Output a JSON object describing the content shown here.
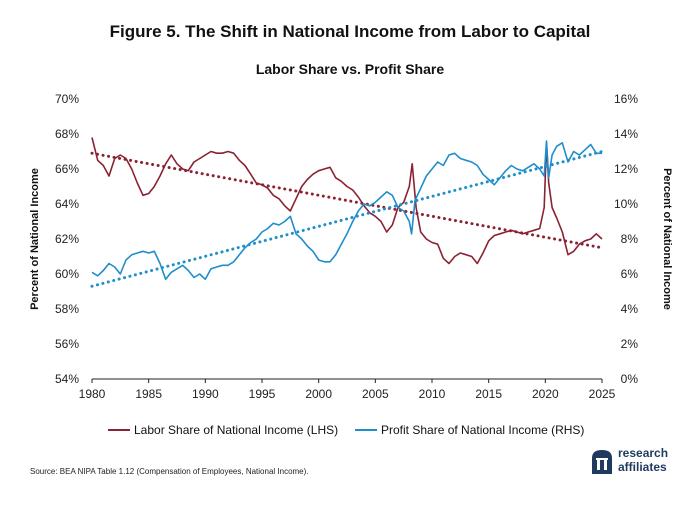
{
  "figure_title": "Figure 5. The Shift in National Income from Labor to Capital",
  "source": "Source: BEA NIPA Table 1.12 (Compensation of Employees, National Income).",
  "logo": {
    "line1": "research",
    "line2": "affiliates",
    "icon": "research-affiliates-logo-icon"
  },
  "colors": {
    "labor": "#8b2232",
    "profit": "#1f8ecb",
    "axis": "#222222"
  },
  "chart_data": {
    "type": "line",
    "title": "Labor Share vs. Profit Share",
    "xlabel": "",
    "ylabel_left": "Percent of National Income",
    "ylabel_right": "Percent of National Income",
    "xlim": [
      1980,
      2025
    ],
    "ylim_left": [
      54,
      70
    ],
    "ylim_right": [
      0,
      16
    ],
    "x_ticks": [
      1980,
      1985,
      1990,
      1995,
      2000,
      2005,
      2010,
      2015,
      2020,
      2025
    ],
    "y_left_ticks": [
      "54%",
      "56%",
      "58%",
      "60%",
      "62%",
      "64%",
      "66%",
      "68%",
      "70%"
    ],
    "y_right_ticks": [
      "0%",
      "2%",
      "4%",
      "6%",
      "8%",
      "10%",
      "12%",
      "14%",
      "16%"
    ],
    "grid": false,
    "legend_position": "bottom",
    "series": [
      {
        "name": "Labor Share of National Income (LHS)",
        "axis": "left",
        "color": "#8b2232",
        "points": [
          [
            1980.0,
            67.8
          ],
          [
            1980.5,
            66.5
          ],
          [
            1981.0,
            66.2
          ],
          [
            1981.5,
            65.6
          ],
          [
            1982.0,
            66.6
          ],
          [
            1982.5,
            66.8
          ],
          [
            1983.0,
            66.6
          ],
          [
            1983.5,
            66.0
          ],
          [
            1984.0,
            65.2
          ],
          [
            1984.5,
            64.5
          ],
          [
            1985.0,
            64.6
          ],
          [
            1985.5,
            65.0
          ],
          [
            1986.0,
            65.6
          ],
          [
            1986.5,
            66.3
          ],
          [
            1987.0,
            66.8
          ],
          [
            1987.5,
            66.3
          ],
          [
            1988.0,
            66.0
          ],
          [
            1988.5,
            65.9
          ],
          [
            1989.0,
            66.4
          ],
          [
            1989.5,
            66.6
          ],
          [
            1990.0,
            66.8
          ],
          [
            1990.5,
            67.0
          ],
          [
            1991.0,
            66.9
          ],
          [
            1991.5,
            66.9
          ],
          [
            1992.0,
            67.0
          ],
          [
            1992.5,
            66.9
          ],
          [
            1993.0,
            66.5
          ],
          [
            1993.5,
            66.2
          ],
          [
            1994.0,
            65.7
          ],
          [
            1994.5,
            65.2
          ],
          [
            1995.0,
            65.1
          ],
          [
            1995.5,
            64.9
          ],
          [
            1996.0,
            64.5
          ],
          [
            1996.5,
            64.3
          ],
          [
            1997.0,
            63.9
          ],
          [
            1997.5,
            63.6
          ],
          [
            1998.0,
            64.3
          ],
          [
            1998.5,
            65.0
          ],
          [
            1999.0,
            65.4
          ],
          [
            1999.5,
            65.7
          ],
          [
            2000.0,
            65.9
          ],
          [
            2000.5,
            66.0
          ],
          [
            2001.0,
            66.1
          ],
          [
            2001.5,
            65.5
          ],
          [
            2002.0,
            65.3
          ],
          [
            2002.5,
            65.0
          ],
          [
            2003.0,
            64.8
          ],
          [
            2003.5,
            64.4
          ],
          [
            2004.0,
            63.9
          ],
          [
            2004.5,
            63.5
          ],
          [
            2005.0,
            63.3
          ],
          [
            2005.5,
            63.0
          ],
          [
            2006.0,
            62.4
          ],
          [
            2006.5,
            62.8
          ],
          [
            2007.0,
            63.8
          ],
          [
            2007.5,
            64.1
          ],
          [
            2008.0,
            65.0
          ],
          [
            2008.25,
            66.3
          ],
          [
            2008.6,
            63.8
          ],
          [
            2009.0,
            62.4
          ],
          [
            2009.5,
            62.0
          ],
          [
            2010.0,
            61.8
          ],
          [
            2010.5,
            61.7
          ],
          [
            2011.0,
            60.9
          ],
          [
            2011.5,
            60.6
          ],
          [
            2012.0,
            61.0
          ],
          [
            2012.5,
            61.2
          ],
          [
            2013.0,
            61.1
          ],
          [
            2013.5,
            61.0
          ],
          [
            2014.0,
            60.6
          ],
          [
            2014.5,
            61.2
          ],
          [
            2015.0,
            61.9
          ],
          [
            2015.5,
            62.2
          ],
          [
            2016.0,
            62.3
          ],
          [
            2016.5,
            62.4
          ],
          [
            2017.0,
            62.5
          ],
          [
            2017.5,
            62.4
          ],
          [
            2018.0,
            62.3
          ],
          [
            2018.5,
            62.4
          ],
          [
            2019.0,
            62.5
          ],
          [
            2019.5,
            62.6
          ],
          [
            2019.9,
            63.8
          ],
          [
            2020.1,
            67.5
          ],
          [
            2020.3,
            65.2
          ],
          [
            2020.6,
            63.8
          ],
          [
            2021.0,
            63.2
          ],
          [
            2021.5,
            62.4
          ],
          [
            2022.0,
            61.1
          ],
          [
            2022.5,
            61.3
          ],
          [
            2023.0,
            61.7
          ],
          [
            2023.5,
            61.9
          ],
          [
            2024.0,
            62.0
          ],
          [
            2024.5,
            62.3
          ],
          [
            2025.0,
            62.0
          ]
        ],
        "trend": [
          [
            1980,
            66.9
          ],
          [
            2025,
            61.5
          ]
        ]
      },
      {
        "name": "Profit Share of National Income (RHS)",
        "axis": "right",
        "color": "#1f8ecb",
        "points": [
          [
            1980.0,
            6.1
          ],
          [
            1980.5,
            5.9
          ],
          [
            1981.0,
            6.2
          ],
          [
            1981.5,
            6.6
          ],
          [
            1982.0,
            6.4
          ],
          [
            1982.5,
            6.0
          ],
          [
            1983.0,
            6.8
          ],
          [
            1983.5,
            7.1
          ],
          [
            1984.0,
            7.2
          ],
          [
            1984.5,
            7.3
          ],
          [
            1985.0,
            7.2
          ],
          [
            1985.5,
            7.3
          ],
          [
            1986.0,
            6.6
          ],
          [
            1986.5,
            5.7
          ],
          [
            1987.0,
            6.1
          ],
          [
            1987.5,
            6.3
          ],
          [
            1988.0,
            6.5
          ],
          [
            1988.5,
            6.2
          ],
          [
            1989.0,
            5.8
          ],
          [
            1989.5,
            6.0
          ],
          [
            1990.0,
            5.7
          ],
          [
            1990.5,
            6.3
          ],
          [
            1991.0,
            6.4
          ],
          [
            1991.5,
            6.5
          ],
          [
            1992.0,
            6.5
          ],
          [
            1992.5,
            6.7
          ],
          [
            1993.0,
            7.1
          ],
          [
            1993.5,
            7.5
          ],
          [
            1994.0,
            7.8
          ],
          [
            1994.5,
            8.0
          ],
          [
            1995.0,
            8.4
          ],
          [
            1995.5,
            8.6
          ],
          [
            1996.0,
            8.9
          ],
          [
            1996.5,
            8.8
          ],
          [
            1997.0,
            9.0
          ],
          [
            1997.5,
            9.3
          ],
          [
            1998.0,
            8.3
          ],
          [
            1998.5,
            8.0
          ],
          [
            1999.0,
            7.6
          ],
          [
            1999.5,
            7.3
          ],
          [
            2000.0,
            6.8
          ],
          [
            2000.5,
            6.7
          ],
          [
            2001.0,
            6.7
          ],
          [
            2001.5,
            7.1
          ],
          [
            2002.0,
            7.7
          ],
          [
            2002.5,
            8.3
          ],
          [
            2003.0,
            9.0
          ],
          [
            2003.5,
            9.6
          ],
          [
            2004.0,
            10.0
          ],
          [
            2004.5,
            9.9
          ],
          [
            2005.0,
            10.1
          ],
          [
            2005.5,
            10.4
          ],
          [
            2006.0,
            10.7
          ],
          [
            2006.5,
            10.5
          ],
          [
            2007.0,
            9.8
          ],
          [
            2007.5,
            9.6
          ],
          [
            2008.0,
            9.0
          ],
          [
            2008.2,
            8.3
          ],
          [
            2008.5,
            10.2
          ],
          [
            2009.0,
            10.9
          ],
          [
            2009.5,
            11.6
          ],
          [
            2010.0,
            12.0
          ],
          [
            2010.5,
            12.4
          ],
          [
            2011.0,
            12.2
          ],
          [
            2011.5,
            12.8
          ],
          [
            2012.0,
            12.9
          ],
          [
            2012.5,
            12.6
          ],
          [
            2013.0,
            12.5
          ],
          [
            2013.5,
            12.4
          ],
          [
            2014.0,
            12.2
          ],
          [
            2014.5,
            11.7
          ],
          [
            2015.0,
            11.4
          ],
          [
            2015.5,
            11.1
          ],
          [
            2016.0,
            11.5
          ],
          [
            2016.5,
            11.9
          ],
          [
            2017.0,
            12.2
          ],
          [
            2017.5,
            12.0
          ],
          [
            2018.0,
            11.9
          ],
          [
            2018.5,
            12.1
          ],
          [
            2019.0,
            12.3
          ],
          [
            2019.5,
            12.0
          ],
          [
            2019.9,
            11.6
          ],
          [
            2020.1,
            13.6
          ],
          [
            2020.3,
            11.5
          ],
          [
            2020.6,
            12.8
          ],
          [
            2021.0,
            13.3
          ],
          [
            2021.5,
            13.5
          ],
          [
            2022.0,
            12.4
          ],
          [
            2022.5,
            13.0
          ],
          [
            2023.0,
            12.8
          ],
          [
            2023.5,
            13.1
          ],
          [
            2024.0,
            13.4
          ],
          [
            2024.5,
            12.9
          ],
          [
            2025.0,
            12.9
          ]
        ],
        "trend": [
          [
            1980,
            5.3
          ],
          [
            2025,
            13.0
          ]
        ]
      }
    ]
  }
}
